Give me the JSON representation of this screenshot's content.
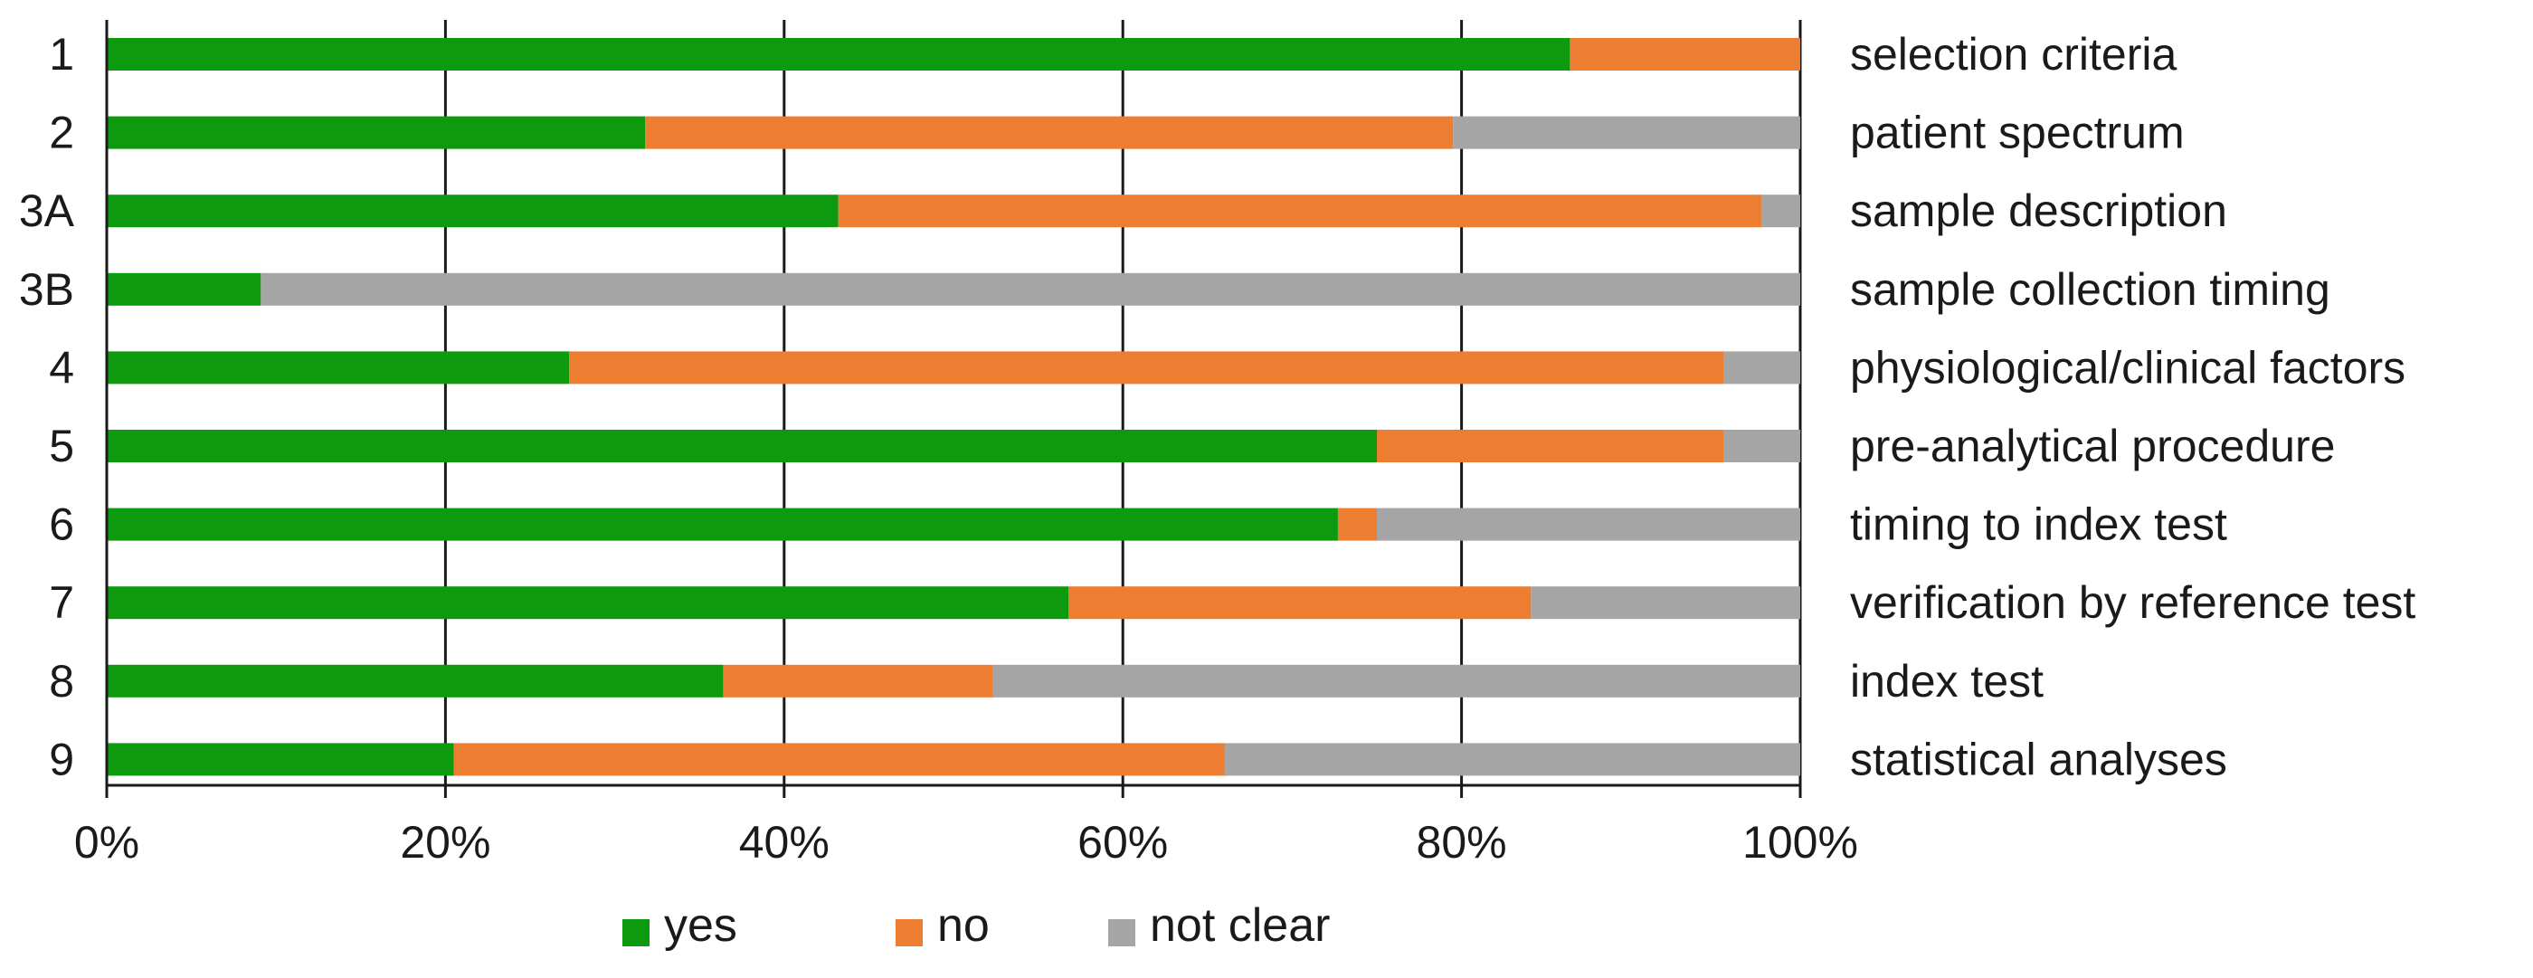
{
  "chart_data": {
    "type": "bar",
    "orientation": "horizontal",
    "stacked": "100%",
    "categories": [
      "1",
      "2",
      "3A",
      "3B",
      "4",
      "5",
      "6",
      "7",
      "8",
      "9"
    ],
    "category_descriptions": [
      "selection criteria",
      "patient spectrum",
      "sample description",
      "sample collection timing",
      "physiological/clinical factors",
      "pre-analytical procedure",
      "timing to index test",
      "verification by reference test",
      "index test",
      "statistical analyses"
    ],
    "series": [
      {
        "name": "yes",
        "color": "#0e9a0e",
        "values": [
          86.4,
          31.8,
          43.2,
          9.1,
          27.3,
          75.0,
          72.7,
          56.8,
          36.4,
          20.5
        ]
      },
      {
        "name": "no",
        "color": "#ed7d31",
        "values": [
          13.6,
          47.7,
          54.5,
          0.0,
          68.2,
          20.5,
          2.3,
          27.3,
          15.9,
          45.5
        ]
      },
      {
        "name": "not clear",
        "color": "#a5a5a5",
        "values": [
          0.0,
          20.5,
          2.3,
          90.9,
          4.5,
          4.5,
          25.0,
          15.9,
          47.7,
          34.0
        ]
      }
    ],
    "x_ticks": [
      "0%",
      "20%",
      "40%",
      "60%",
      "80%",
      "100%"
    ],
    "x_tick_values": [
      0,
      20,
      40,
      60,
      80,
      100
    ],
    "xlim": [
      0,
      100
    ],
    "title": "",
    "xlabel": "",
    "ylabel": "",
    "grid": "vertical gridlines at each 20%",
    "legend": "bottom-center"
  }
}
